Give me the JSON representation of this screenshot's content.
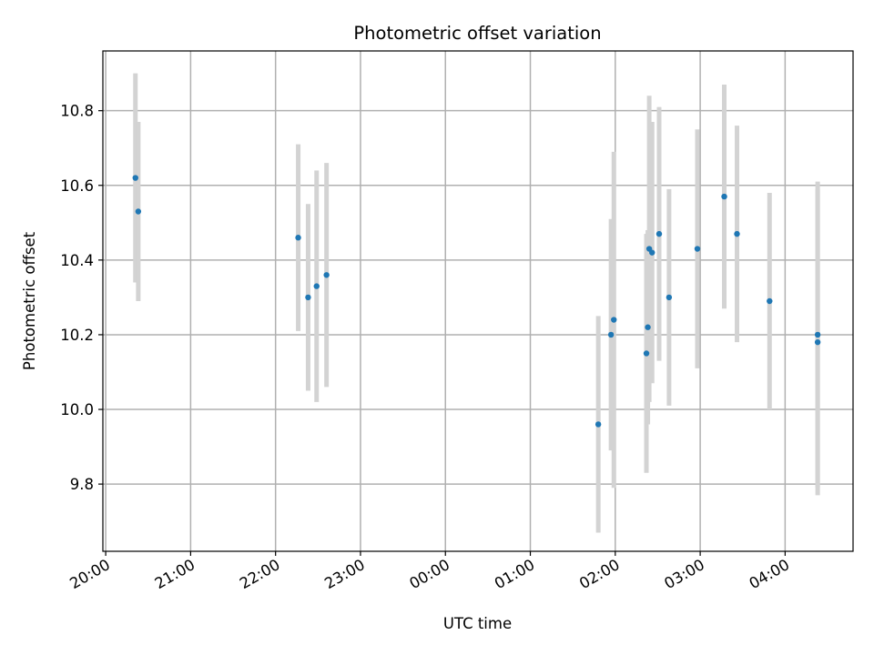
{
  "chart_data": {
    "type": "scatter",
    "title": "Photometric offset variation",
    "xlabel": "UTC time",
    "ylabel": "Photometric offset",
    "x_reference_hour_labels": [
      "20:00",
      "21:00",
      "22:00",
      "23:00",
      "00:00",
      "01:00",
      "02:00",
      "03:00",
      "04:00"
    ],
    "xlim": [
      "19:58",
      "04:48"
    ],
    "ylim": [
      9.62,
      10.96
    ],
    "yticks": [
      9.8,
      10.0,
      10.2,
      10.4,
      10.6,
      10.8
    ],
    "ytick_labels": [
      "9.8",
      "10.0",
      "10.2",
      "10.4",
      "10.6",
      "10.8"
    ],
    "grid": true,
    "series": [
      {
        "marker_color": "#1f77b4",
        "errorbar_color": "#d3d3d3",
        "points": [
          {
            "x": "20:21",
            "y": 10.62,
            "yerr": 0.28
          },
          {
            "x": "20:23",
            "y": 10.53,
            "yerr": 0.24
          },
          {
            "x": "22:16",
            "y": 10.46,
            "yerr": 0.25
          },
          {
            "x": "22:23",
            "y": 10.3,
            "yerr": 0.25
          },
          {
            "x": "22:29",
            "y": 10.33,
            "yerr": 0.31
          },
          {
            "x": "22:36",
            "y": 10.36,
            "yerr": 0.3
          },
          {
            "x": "01:48",
            "y": 9.96,
            "yerr": 0.29
          },
          {
            "x": "01:57",
            "y": 10.2,
            "yerr": 0.31
          },
          {
            "x": "01:59",
            "y": 10.24,
            "yerr": 0.45
          },
          {
            "x": "02:22",
            "y": 10.15,
            "yerr": 0.32
          },
          {
            "x": "02:23",
            "y": 10.22,
            "yerr": 0.26
          },
          {
            "x": "02:24",
            "y": 10.43,
            "yerr": 0.41
          },
          {
            "x": "02:26",
            "y": 10.42,
            "yerr": 0.35
          },
          {
            "x": "02:31",
            "y": 10.47,
            "yerr": 0.34
          },
          {
            "x": "02:38",
            "y": 10.3,
            "yerr": 0.29
          },
          {
            "x": "02:58",
            "y": 10.43,
            "yerr": 0.32
          },
          {
            "x": "03:17",
            "y": 10.57,
            "yerr": 0.3
          },
          {
            "x": "03:26",
            "y": 10.47,
            "yerr": 0.29
          },
          {
            "x": "03:49",
            "y": 10.29,
            "yerr": 0.29
          },
          {
            "x": "04:23",
            "y": 10.2,
            "yerr": 0.41
          },
          {
            "x": "04:23",
            "y": 10.18,
            "yerr": 0.41
          }
        ]
      }
    ]
  }
}
